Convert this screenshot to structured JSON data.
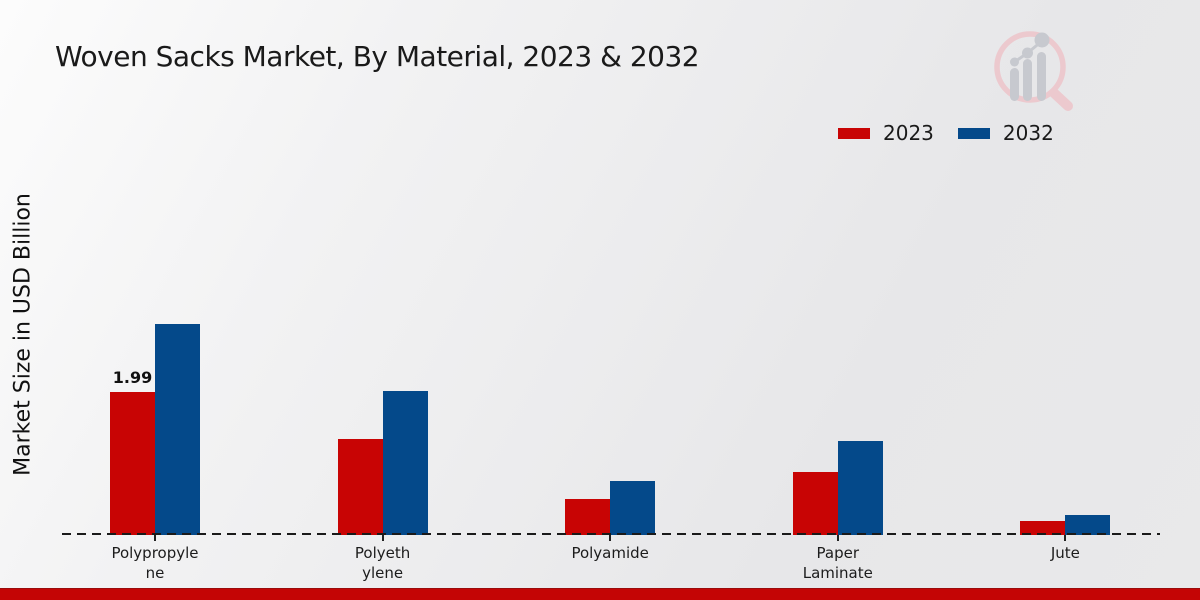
{
  "chart_data": {
    "type": "bar",
    "title": "Woven Sacks Market, By Material, 2023 & 2032",
    "ylabel": "Market Size in USD Billion",
    "xlabel": "",
    "categories": [
      "Polypropylene",
      "Polyethylene",
      "Polyamide",
      "Paper Laminate",
      "Jute"
    ],
    "category_label_lines": [
      [
        "Polypropyle",
        "ne"
      ],
      [
        "Polyeth",
        "ylene"
      ],
      [
        "Polyamide"
      ],
      [
        "Paper",
        "Laminate"
      ],
      [
        "Jute"
      ]
    ],
    "series": [
      {
        "name": "2023",
        "color": "#c80404",
        "values": [
          1.99,
          1.33,
          0.5,
          0.87,
          0.2
        ]
      },
      {
        "name": "2032",
        "color": "#04498a",
        "values": [
          2.94,
          2.01,
          0.75,
          1.31,
          0.28
        ]
      }
    ],
    "ylim": [
      0,
      3.2
    ],
    "grid": false,
    "axis_line_style": "dashed",
    "legend_position": "top-right",
    "data_labels": [
      {
        "series": "2023",
        "category": "Polypropylene",
        "text": "1.99"
      }
    ]
  },
  "footer": {
    "band_color": "#c40505"
  },
  "watermark": {
    "icon": "magnifier-growth-chart-logo",
    "rim_color": "#ecc9ce",
    "bar_color": "#c7c9cf"
  }
}
